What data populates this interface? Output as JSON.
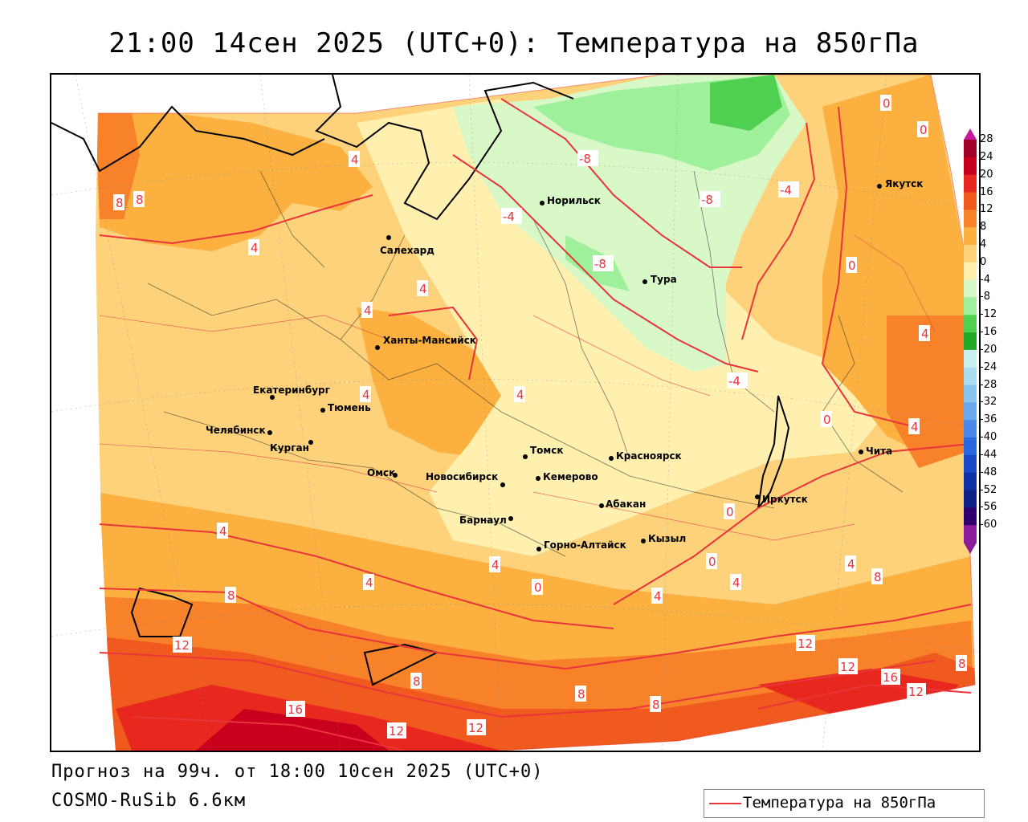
{
  "header": {
    "title": "21:00 14сен 2025 (UTC+0): Температура на 850гПа"
  },
  "footer": {
    "forecast": "Прогноз на 99ч. от 18:00 10сен 2025 (UTC+0)",
    "model": "COSMO-RuSib 6.6км"
  },
  "legend": {
    "label": "Температура на 850гПа",
    "line_color": "#e8343a"
  },
  "colorbar": {
    "ticks": [
      "28",
      "24",
      "20",
      "16",
      "12",
      "8",
      "4",
      "0",
      "-4",
      "-8",
      "-12",
      "-16",
      "-20",
      "-24",
      "-28",
      "-32",
      "-36",
      "-40",
      "-44",
      "-48",
      "-52",
      "-56",
      "-60"
    ],
    "colors": [
      "#a0002a",
      "#c8001e",
      "#e8281e",
      "#f05a1e",
      "#f8822a",
      "#fbb040",
      "#fdd27a",
      "#fff0b0",
      "#d8f8c8",
      "#9ef09a",
      "#50d050",
      "#22a828",
      "#c8f0f0",
      "#a8dcf0",
      "#88c4f0",
      "#68a8f0",
      "#4888e8",
      "#2868e0",
      "#1848c8",
      "#1030a8",
      "#102088",
      "#300070",
      "#8c1c9c"
    ]
  },
  "cities": [
    {
      "name": "Якутск"
    },
    {
      "name": "Норильск"
    },
    {
      "name": "Салехард"
    },
    {
      "name": "Тура"
    },
    {
      "name": "Ханты-Мансийск"
    },
    {
      "name": "Екатеринбург"
    },
    {
      "name": "Тюмень"
    },
    {
      "name": "Челябинск"
    },
    {
      "name": "Курган"
    },
    {
      "name": "Омск"
    },
    {
      "name": "Новосибирск"
    },
    {
      "name": "Томск"
    },
    {
      "name": "Кемерово"
    },
    {
      "name": "Красноярск"
    },
    {
      "name": "Абакан"
    },
    {
      "name": "Барнаул"
    },
    {
      "name": "Горно-Алтайск"
    },
    {
      "name": "Кызыл"
    },
    {
      "name": "Иркутск"
    },
    {
      "name": "Чита"
    }
  ],
  "isotherm_labels": [
    "8",
    "8",
    "4",
    "4",
    "4",
    "4",
    "4",
    "4",
    "-8",
    "-8",
    "-8",
    "-4",
    "-4",
    "-4",
    "0",
    "0",
    "0",
    "0",
    "0",
    "0",
    "0",
    "4",
    "4",
    "4",
    "4",
    "4",
    "4",
    "4",
    "4",
    "8",
    "8",
    "8",
    "8",
    "8",
    "12",
    "12",
    "12",
    "12",
    "12",
    "12",
    "16",
    "16",
    "8"
  ]
}
